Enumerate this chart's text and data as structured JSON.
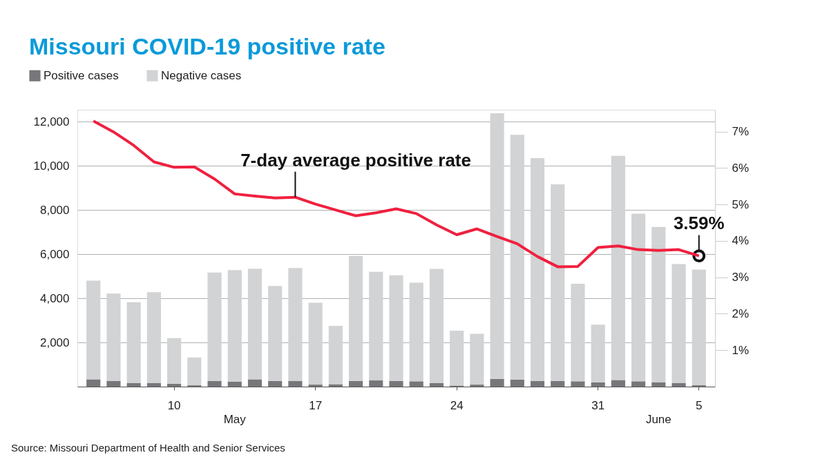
{
  "chart_data": {
    "type": "bar",
    "title": "Missouri COVID-19 positive rate",
    "categories": [
      null,
      null,
      null,
      null,
      "10",
      null,
      null,
      null,
      null,
      null,
      null,
      "17",
      null,
      null,
      null,
      null,
      null,
      null,
      "24",
      null,
      null,
      null,
      null,
      null,
      null,
      "31",
      null,
      null,
      null,
      null,
      "5"
    ],
    "stacked": true,
    "series": [
      {
        "name": "Positive cases",
        "color": "#77777b",
        "values": [
          330,
          250,
          160,
          160,
          130,
          60,
          250,
          230,
          330,
          250,
          250,
          90,
          110,
          260,
          280,
          250,
          240,
          160,
          50,
          90,
          350,
          320,
          260,
          260,
          240,
          190,
          300,
          240,
          200,
          160,
          60
        ]
      },
      {
        "name": "Negative cases",
        "color": "#d1d3d4",
        "values": [
          4470,
          3960,
          3660,
          4120,
          2070,
          1260,
          4920,
          5050,
          5010,
          4310,
          5120,
          3710,
          2640,
          5660,
          4920,
          4790,
          4470,
          5170,
          2480,
          2300,
          12030,
          11090,
          10090,
          8900,
          4420,
          2620,
          10150,
          7590,
          7030,
          5390,
          5240
        ]
      },
      {
        "name": "7-day average positive rate",
        "type": "line",
        "axis": "y2",
        "color": "#f0203f",
        "values": [
          7.29,
          6.99,
          6.62,
          6.17,
          6.02,
          6.03,
          5.7,
          5.29,
          5.23,
          5.18,
          5.2,
          5.01,
          4.85,
          4.69,
          4.77,
          4.88,
          4.75,
          4.44,
          4.17,
          4.33,
          4.12,
          3.92,
          3.57,
          3.29,
          3.3,
          3.82,
          3.86,
          3.76,
          3.74,
          3.76,
          3.59
        ]
      }
    ],
    "ylim": [
      0,
      12540
    ],
    "yticks": [
      {
        "value": 0,
        "label": null
      },
      {
        "value": 2000,
        "label": "2,000"
      },
      {
        "value": 4000,
        "label": "4,000"
      },
      {
        "value": 6000,
        "label": "6,000"
      },
      {
        "value": 8000,
        "label": "8,000"
      },
      {
        "value": 10000,
        "label": "10,000"
      },
      {
        "value": 12000,
        "label": "12,000"
      }
    ],
    "y2lim": [
      0,
      7.6
    ],
    "y2ticks": [
      {
        "value": 1,
        "label": "1%"
      },
      {
        "value": 2,
        "label": "2%"
      },
      {
        "value": 3,
        "label": "3%"
      },
      {
        "value": 4,
        "label": "4%"
      },
      {
        "value": 5,
        "label": "5%"
      },
      {
        "value": 6,
        "label": "6%"
      },
      {
        "value": 7,
        "label": "7%"
      }
    ],
    "grid": "y",
    "legend": "top left",
    "line_style": "solid",
    "annotations": [
      {
        "text": "3.59%",
        "x": "5",
        "y": 5920
      },
      "May",
      "June",
      "Source: Missouri Department of Health and Senior Services"
    ]
  }
}
